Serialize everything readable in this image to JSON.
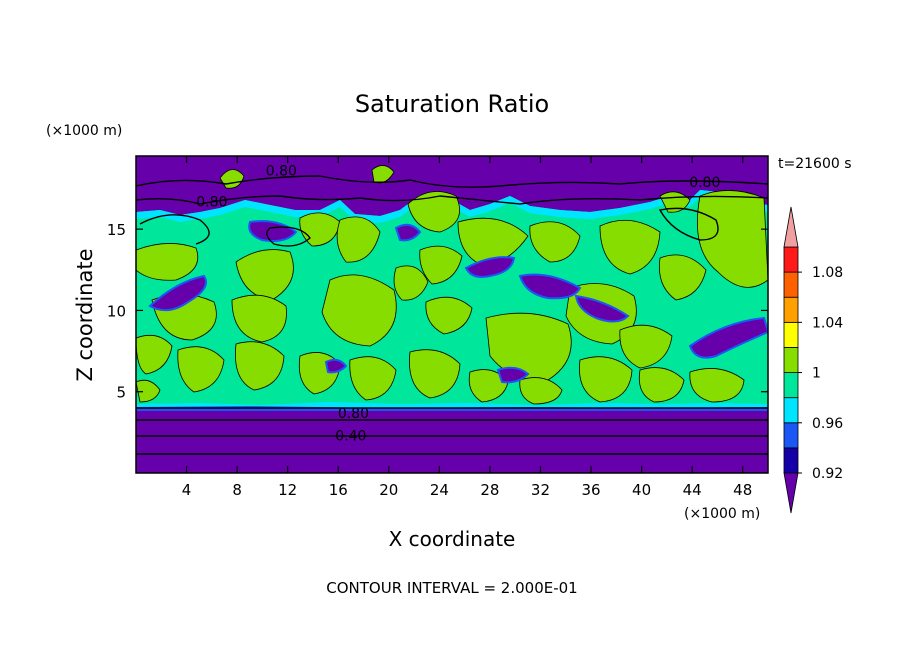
{
  "chart_data": {
    "type": "heatmap",
    "title": "Saturation Ratio",
    "xlabel": "X coordinate",
    "ylabel": "Z coordinate",
    "x_unit": "(×1000 m)",
    "y_unit": "(×1000 m)",
    "time_label": "t=21600 s",
    "footer": "CONTOUR INTERVAL = 2.000E-01",
    "xlim": [
      0,
      50
    ],
    "ylim": [
      0,
      19.5
    ],
    "x_ticks": [
      4,
      8,
      12,
      16,
      20,
      24,
      28,
      32,
      36,
      40,
      44,
      48
    ],
    "y_ticks": [
      5,
      10,
      15
    ],
    "contour_labels": [
      {
        "text": "0.80",
        "x": 11.5,
        "y": 18.6
      },
      {
        "text": "0.80",
        "x": 45.0,
        "y": 17.9
      },
      {
        "text": "0.80",
        "x": 6.0,
        "y": 16.7
      },
      {
        "text": "0.80",
        "x": 17.2,
        "y": 3.7
      },
      {
        "text": "0.40",
        "x": 17.0,
        "y": 2.3
      }
    ],
    "colorbar": {
      "tick_labels": [
        "1.08",
        "1.04",
        "1",
        "0.96",
        "0.92"
      ],
      "tick_values": [
        1.08,
        1.04,
        1.0,
        0.96,
        0.92
      ],
      "levels": [
        0.92,
        0.94,
        0.96,
        0.98,
        1.0,
        1.02,
        1.04,
        1.06,
        1.08,
        1.1
      ],
      "colors": [
        "#6600aa",
        "#1500a8",
        "#1a57f5",
        "#00e5ff",
        "#00e69a",
        "#88dd00",
        "#ffff00",
        "#ffa000",
        "#ff6000",
        "#ff1a1a",
        "#f0a0a0"
      ]
    }
  }
}
